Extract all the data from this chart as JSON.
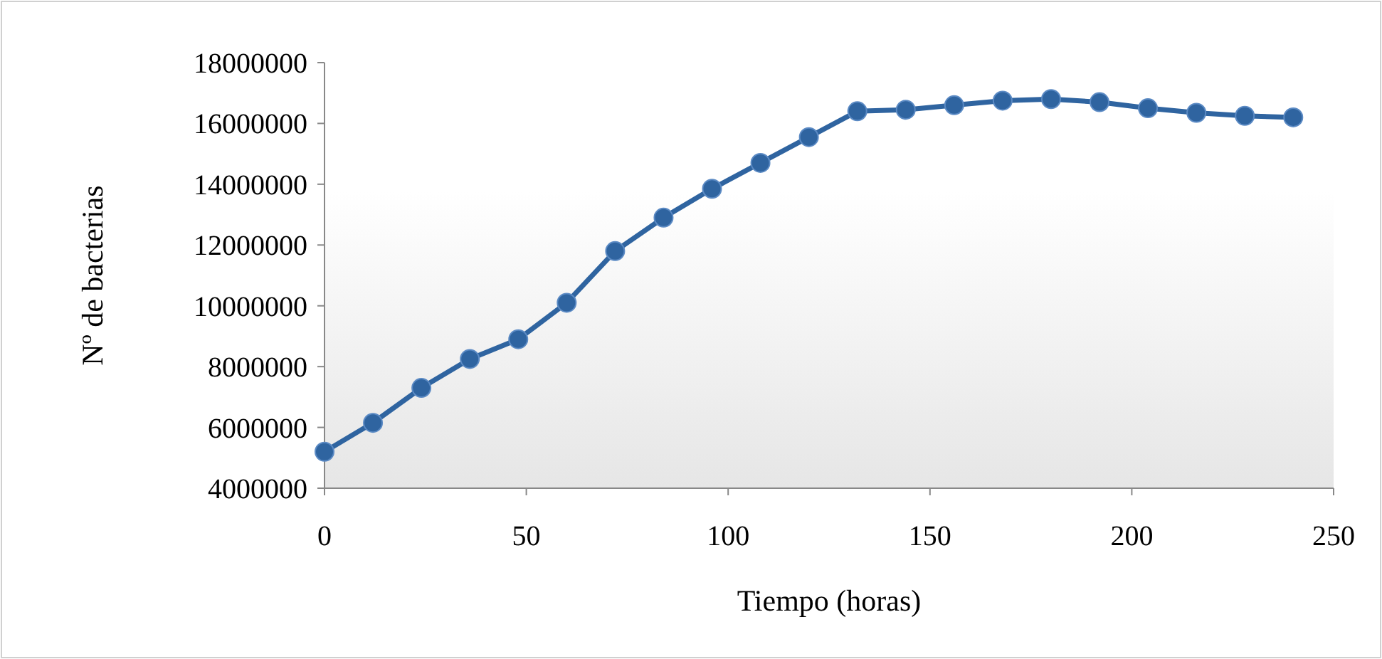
{
  "chart_data": {
    "type": "line",
    "xlabel": "Tiempo (horas)",
    "ylabel": "Nº de bacterias",
    "x": [
      0,
      12,
      24,
      36,
      48,
      60,
      72,
      84,
      96,
      108,
      120,
      132,
      144,
      156,
      168,
      180,
      192,
      204,
      216,
      228,
      240
    ],
    "series": [
      {
        "color": "#2f64a0",
        "values": [
          5200000,
          6150000,
          7300000,
          8250000,
          8900000,
          10100000,
          11800000,
          12900000,
          13850000,
          14700000,
          15550000,
          16400000,
          16450000,
          16600000,
          16750000,
          16800000,
          16700000,
          16500000,
          16350000,
          16250000,
          16200000
        ]
      }
    ],
    "xlim": [
      0,
      250
    ],
    "xticks": [
      0,
      50,
      100,
      150,
      200,
      250
    ],
    "ylim": [
      4000000,
      18000000
    ],
    "yticks": [
      4000000,
      6000000,
      8000000,
      10000000,
      12000000,
      14000000,
      16000000,
      18000000
    ],
    "grid": false,
    "marker": "circle",
    "line_style": "solid"
  }
}
